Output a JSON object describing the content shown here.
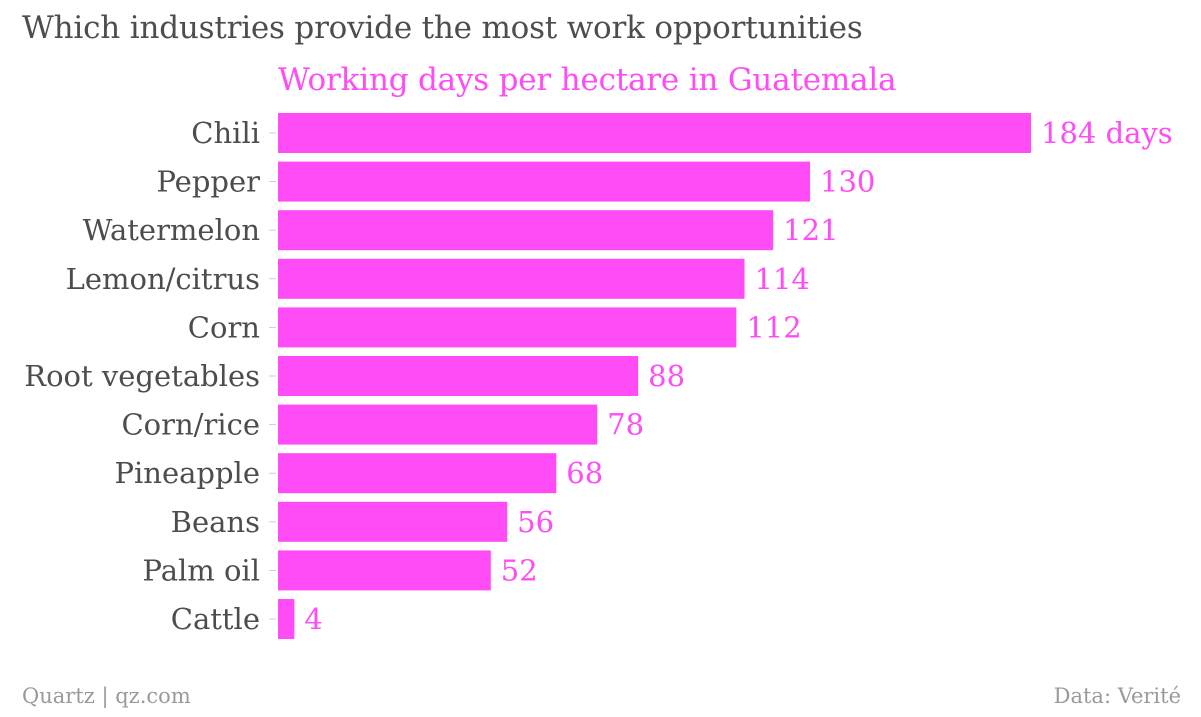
{
  "chart_data": {
    "type": "bar",
    "orientation": "horizontal",
    "title": "Which industries provide the most work opportunities",
    "subtitle": "Working days per hectare in Guatemala",
    "categories": [
      "Chili",
      "Pepper",
      "Watermelon",
      "Lemon/citrus",
      "Corn",
      "Root vegetables",
      "Corn/rice",
      "Pineapple",
      "Beans",
      "Palm oil",
      "Cattle"
    ],
    "values": [
      184,
      130,
      121,
      114,
      112,
      88,
      78,
      68,
      56,
      52,
      4
    ],
    "data_labels": [
      "184 days",
      "130",
      "121",
      "114",
      "112",
      "88",
      "78",
      "68",
      "56",
      "52",
      "4"
    ],
    "bar_color": "#ff4cf6",
    "label_color": "#ff4cf6",
    "xlim": [
      0,
      184
    ],
    "grid": false,
    "legend": "none"
  },
  "footer": {
    "source_left": "Quartz | qz.com",
    "source_right": "Data: Verité"
  }
}
